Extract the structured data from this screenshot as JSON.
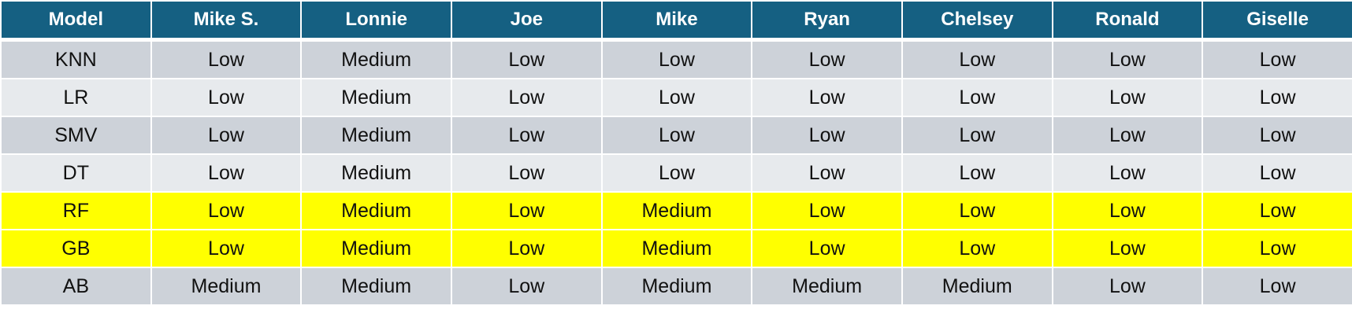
{
  "colors": {
    "header_bg": "#156082",
    "header_text": "#ffffff",
    "row_dark": "#cdd2d9",
    "row_light": "#e7eaed",
    "row_highlight": "#ffff00"
  },
  "table": {
    "headers": [
      "Model",
      "Mike S.",
      "Lonnie",
      "Joe",
      "Mike",
      "Ryan",
      "Chelsey",
      "Ronald",
      "Giselle"
    ],
    "rows": [
      {
        "style": "dark",
        "cells": [
          "KNN",
          "Low",
          "Medium",
          "Low",
          "Low",
          "Low",
          "Low",
          "Low",
          "Low"
        ]
      },
      {
        "style": "light",
        "cells": [
          "LR",
          "Low",
          "Medium",
          "Low",
          "Low",
          "Low",
          "Low",
          "Low",
          "Low"
        ]
      },
      {
        "style": "dark",
        "cells": [
          "SMV",
          "Low",
          "Medium",
          "Low",
          "Low",
          "Low",
          "Low",
          "Low",
          "Low"
        ]
      },
      {
        "style": "light",
        "cells": [
          "DT",
          "Low",
          "Medium",
          "Low",
          "Low",
          "Low",
          "Low",
          "Low",
          "Low"
        ]
      },
      {
        "style": "highlight",
        "cells": [
          "RF",
          "Low",
          "Medium",
          "Low",
          "Medium",
          "Low",
          "Low",
          "Low",
          "Low"
        ]
      },
      {
        "style": "highlight",
        "cells": [
          "GB",
          "Low",
          "Medium",
          "Low",
          "Medium",
          "Low",
          "Low",
          "Low",
          "Low"
        ]
      },
      {
        "style": "dark",
        "cells": [
          "AB",
          "Medium",
          "Medium",
          "Low",
          "Medium",
          "Medium",
          "Medium",
          "Low",
          "Low"
        ]
      }
    ]
  }
}
